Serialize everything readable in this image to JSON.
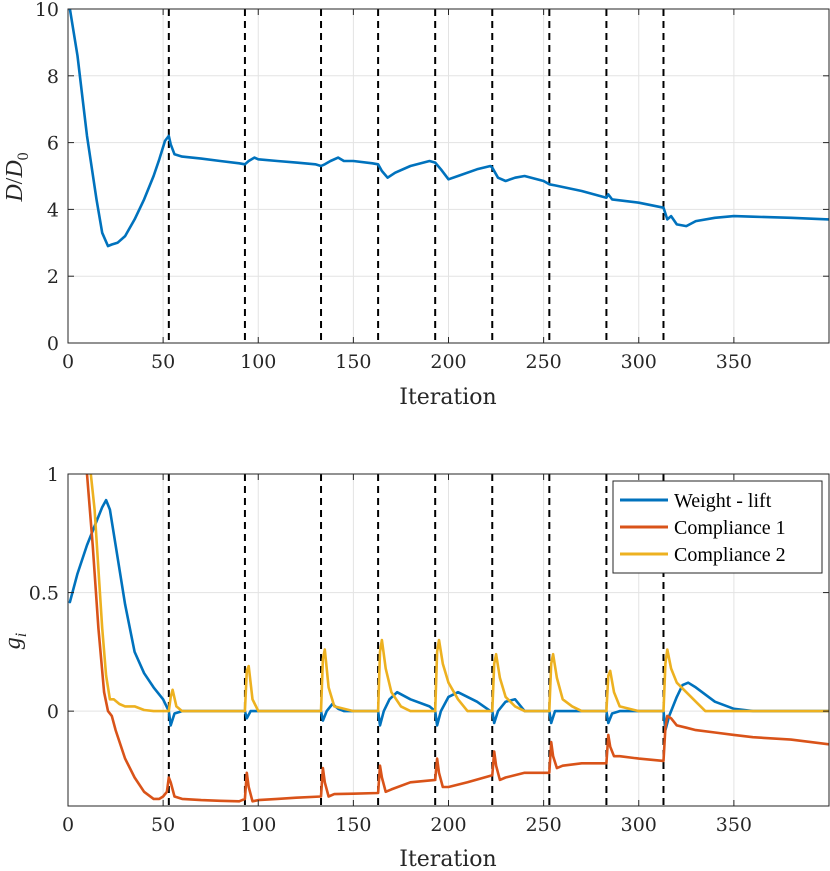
{
  "colors": {
    "weight_lift": "#0072BD",
    "compliance_1": "#D95319",
    "compliance_2": "#EDB120",
    "axis": "#262626"
  },
  "chart_data": [
    {
      "type": "line",
      "xlabel": "Iteration",
      "ylabel_main": "D",
      "ylabel_sep": "/",
      "ylabel_den": "D",
      "ylabel_den_sub": "0",
      "xlim": [
        0,
        400
      ],
      "ylim": [
        0,
        10
      ],
      "xticks": [
        0,
        50,
        100,
        150,
        200,
        250,
        300,
        350
      ],
      "xtick_labels": [
        "0",
        "50",
        "100",
        "150",
        "200",
        "250",
        "300",
        "350"
      ],
      "yticks": [
        0,
        2,
        4,
        6,
        8,
        10
      ],
      "ytick_labels": [
        "0",
        "2",
        "4",
        "6",
        "8",
        "10"
      ],
      "grid": true,
      "vlines": [
        53,
        93,
        133,
        163,
        193,
        223,
        253,
        283,
        313
      ],
      "series": [
        {
          "name": "D/D0",
          "color_key": "weight_lift",
          "x": [
            1,
            5,
            10,
            15,
            18,
            21,
            23,
            26,
            30,
            35,
            40,
            45,
            48,
            51,
            53,
            54,
            56,
            60,
            70,
            80,
            90,
            93,
            95,
            98,
            100,
            110,
            120,
            130,
            133,
            135,
            138,
            142,
            145,
            150,
            160,
            163,
            165,
            168,
            172,
            180,
            190,
            193,
            196,
            200,
            205,
            215,
            222,
            223,
            226,
            230,
            235,
            240,
            250,
            253,
            256,
            270,
            283,
            284,
            286,
            300,
            313,
            315,
            317,
            320,
            325,
            330,
            340,
            350,
            360,
            380,
            400
          ],
          "y": [
            10,
            8.6,
            6.2,
            4.3,
            3.3,
            2.9,
            2.95,
            3.0,
            3.2,
            3.7,
            4.3,
            5.0,
            5.5,
            6.05,
            6.2,
            5.95,
            5.65,
            5.58,
            5.52,
            5.45,
            5.38,
            5.35,
            5.45,
            5.55,
            5.5,
            5.45,
            5.4,
            5.35,
            5.3,
            5.35,
            5.45,
            5.55,
            5.45,
            5.45,
            5.38,
            5.35,
            5.15,
            4.95,
            5.1,
            5.3,
            5.45,
            5.4,
            5.2,
            4.9,
            5.0,
            5.2,
            5.3,
            5.25,
            4.95,
            4.85,
            4.95,
            5.0,
            4.85,
            4.75,
            4.72,
            4.55,
            4.35,
            4.45,
            4.3,
            4.2,
            4.05,
            3.7,
            3.8,
            3.55,
            3.5,
            3.65,
            3.75,
            3.8,
            3.78,
            3.75,
            3.7
          ]
        }
      ]
    },
    {
      "type": "line",
      "xlabel": "Iteration",
      "ylabel_main": "g",
      "ylabel_sub": "i",
      "xlim": [
        0,
        400
      ],
      "ylim": [
        -0.4,
        1
      ],
      "xticks": [
        0,
        50,
        100,
        150,
        200,
        250,
        300,
        350
      ],
      "xtick_labels": [
        "0",
        "50",
        "100",
        "150",
        "200",
        "250",
        "300",
        "350"
      ],
      "yticks": [
        0,
        0.5,
        1
      ],
      "ytick_labels": [
        "0",
        "0.5",
        "1"
      ],
      "grid": true,
      "vlines": [
        53,
        93,
        133,
        163,
        193,
        223,
        253,
        283,
        313
      ],
      "legend": {
        "location": "top-right",
        "entries": [
          "Weight - lift",
          "Compliance 1",
          "Compliance 2"
        ]
      },
      "series": [
        {
          "name": "Weight - lift",
          "color_key": "weight_lift",
          "x": [
            1,
            5,
            10,
            15,
            18,
            20,
            22,
            25,
            30,
            35,
            40,
            45,
            50,
            53,
            54,
            56,
            60,
            70,
            80,
            90,
            93,
            94,
            96,
            100,
            110,
            130,
            133,
            134,
            136,
            139,
            142,
            145,
            150,
            160,
            163,
            164,
            166,
            169,
            173,
            180,
            190,
            193,
            194,
            196,
            200,
            205,
            215,
            222,
            223,
            224,
            226,
            230,
            235,
            240,
            253,
            254,
            256,
            260,
            270,
            283,
            284,
            286,
            290,
            300,
            313,
            314,
            316,
            320,
            323,
            326,
            330,
            340,
            350,
            360,
            380,
            400
          ],
          "y": [
            0.46,
            0.58,
            0.7,
            0.8,
            0.86,
            0.89,
            0.85,
            0.7,
            0.45,
            0.25,
            0.16,
            0.1,
            0.05,
            0.0,
            -0.06,
            -0.01,
            0.0,
            0.0,
            0.0,
            0.0,
            0.0,
            -0.03,
            0.0,
            0.0,
            0.0,
            0.0,
            0.0,
            -0.04,
            0.0,
            0.03,
            0.01,
            0.0,
            0.0,
            0.0,
            0.0,
            -0.06,
            0.0,
            0.05,
            0.08,
            0.05,
            0.02,
            0.0,
            -0.06,
            0.0,
            0.06,
            0.08,
            0.04,
            0.0,
            0.0,
            -0.05,
            0.0,
            0.04,
            0.05,
            0.0,
            0.0,
            -0.05,
            0.0,
            0.0,
            0.0,
            0.0,
            -0.05,
            -0.01,
            0.0,
            0.0,
            0.0,
            -0.08,
            -0.02,
            0.06,
            0.11,
            0.12,
            0.1,
            0.04,
            0.01,
            0.0,
            0.0,
            0.0
          ]
        },
        {
          "name": "Compliance 1",
          "color_key": "compliance_1",
          "x": [
            10,
            13,
            16,
            19,
            21,
            23,
            25,
            30,
            35,
            40,
            45,
            48,
            50,
            52,
            53,
            54,
            56,
            60,
            70,
            80,
            90,
            93,
            94,
            95,
            97,
            100,
            110,
            120,
            133,
            134,
            135,
            137,
            140,
            150,
            163,
            164,
            165,
            167,
            170,
            180,
            193,
            194,
            195,
            197,
            200,
            210,
            223,
            224,
            225,
            227,
            230,
            240,
            253,
            254,
            255,
            257,
            260,
            270,
            283,
            284,
            285,
            287,
            290,
            300,
            313,
            314,
            315,
            317,
            320,
            325,
            330,
            340,
            350,
            360,
            380,
            400
          ],
          "y": [
            1.0,
            0.7,
            0.35,
            0.08,
            0.0,
            -0.02,
            -0.08,
            -0.2,
            -0.28,
            -0.34,
            -0.37,
            -0.37,
            -0.36,
            -0.34,
            -0.28,
            -0.3,
            -0.36,
            -0.37,
            -0.375,
            -0.378,
            -0.38,
            -0.37,
            -0.26,
            -0.32,
            -0.38,
            -0.375,
            -0.37,
            -0.365,
            -0.36,
            -0.24,
            -0.3,
            -0.36,
            -0.35,
            -0.348,
            -0.345,
            -0.23,
            -0.28,
            -0.34,
            -0.33,
            -0.3,
            -0.29,
            -0.2,
            -0.26,
            -0.32,
            -0.32,
            -0.3,
            -0.27,
            -0.17,
            -0.23,
            -0.29,
            -0.28,
            -0.26,
            -0.26,
            -0.13,
            -0.19,
            -0.24,
            -0.23,
            -0.22,
            -0.22,
            -0.1,
            -0.15,
            -0.19,
            -0.19,
            -0.2,
            -0.21,
            -0.07,
            -0.02,
            -0.03,
            -0.06,
            -0.07,
            -0.08,
            -0.09,
            -0.1,
            -0.11,
            -0.12,
            -0.14
          ]
        },
        {
          "name": "Compliance 2",
          "color_key": "compliance_2",
          "x": [
            12,
            14,
            16,
            18,
            20,
            22,
            24,
            27,
            30,
            35,
            40,
            45,
            50,
            53,
            54,
            55,
            57,
            60,
            70,
            80,
            93,
            94,
            95,
            97,
            100,
            110,
            133,
            134,
            135,
            137,
            140,
            150,
            163,
            164,
            165,
            167,
            170,
            175,
            180,
            193,
            194,
            195,
            197,
            200,
            205,
            210,
            223,
            224,
            225,
            227,
            230,
            235,
            240,
            253,
            254,
            255,
            257,
            260,
            265,
            270,
            283,
            284,
            285,
            287,
            290,
            300,
            313,
            314,
            315,
            317,
            320,
            325,
            330,
            335,
            340,
            350,
            360,
            380,
            400
          ],
          "y": [
            1.0,
            0.85,
            0.6,
            0.35,
            0.15,
            0.05,
            0.05,
            0.03,
            0.02,
            0.02,
            0.005,
            0.0,
            0.0,
            0.0,
            0.06,
            0.09,
            0.02,
            0.0,
            0.0,
            0.0,
            0.0,
            0.17,
            0.19,
            0.05,
            0.0,
            0.0,
            0.0,
            0.22,
            0.26,
            0.1,
            0.02,
            0.0,
            0.0,
            0.25,
            0.3,
            0.18,
            0.08,
            0.02,
            0.0,
            0.0,
            0.25,
            0.3,
            0.2,
            0.12,
            0.05,
            0.0,
            0.0,
            0.2,
            0.24,
            0.14,
            0.06,
            0.02,
            0.0,
            0.0,
            0.2,
            0.24,
            0.14,
            0.05,
            0.02,
            0.0,
            0.0,
            0.15,
            0.17,
            0.08,
            0.02,
            0.0,
            0.0,
            0.2,
            0.26,
            0.18,
            0.12,
            0.08,
            0.04,
            0.0,
            0.0,
            0.0,
            0.0,
            0.0,
            0.0
          ]
        }
      ]
    }
  ]
}
